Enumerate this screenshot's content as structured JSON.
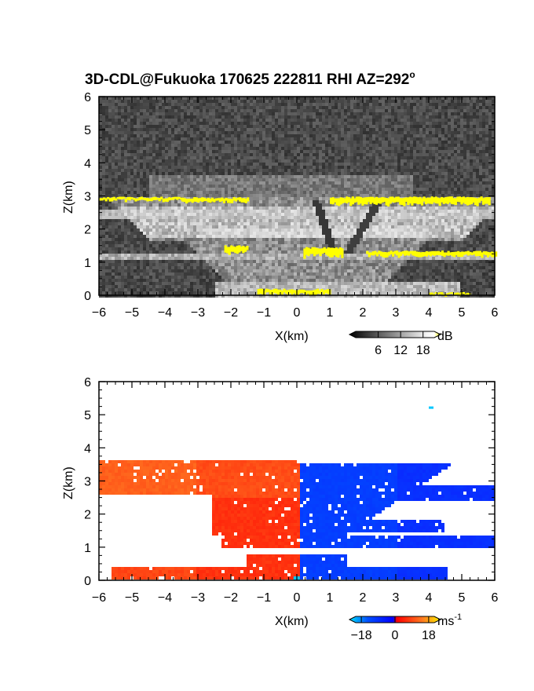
{
  "title": "3D-CDL@Fukuoka 170625 222811 RHI AZ=292",
  "title_degree": "o",
  "chart_data": [
    {
      "type": "heatmap",
      "quantity": "dB",
      "xlabel": "X(km)",
      "ylabel": "Z(km)",
      "xlim": [
        -6,
        6
      ],
      "ylim": [
        0,
        6
      ],
      "xticks": [
        "-6",
        "-5",
        "-4",
        "-3",
        "-2",
        "-1",
        "0",
        "1",
        "2",
        "3",
        "4",
        "5",
        "6"
      ],
      "yticks": [
        "0",
        "1",
        "2",
        "3",
        "4",
        "5",
        "6"
      ],
      "colorbar": {
        "unit": "dB",
        "ticks": [
          "6",
          "12",
          "18"
        ],
        "range": [
          0,
          21
        ]
      },
      "features": [
        {
          "name": "bright layer",
          "x": [
            -6,
            5.8
          ],
          "z": 2.85,
          "value": 18
        },
        {
          "name": "layer",
          "x": [
            -6,
            6
          ],
          "z": 1.2,
          "value": 14
        },
        {
          "name": "layer",
          "x": [
            -0.5,
            5.3
          ],
          "z": 0.05,
          "value": 18
        }
      ],
      "colors": {
        "low": "#1a1a1a",
        "high": "#ffffff",
        "saturated": "#ffff00"
      }
    },
    {
      "type": "heatmap",
      "quantity": "ms-1",
      "xlabel": "X(km)",
      "ylabel": "Z(km)",
      "xlim": [
        -6,
        6
      ],
      "ylim": [
        0,
        6
      ],
      "xticks": [
        "-6",
        "-5",
        "-4",
        "-3",
        "-2",
        "-1",
        "0",
        "1",
        "2",
        "3",
        "4",
        "5",
        "6"
      ],
      "yticks": [
        "0",
        "1",
        "2",
        "3",
        "4",
        "5",
        "6"
      ],
      "colorbar": {
        "unit": "ms",
        "unit_sup": "-1",
        "ticks": [
          "-18",
          "0",
          "18"
        ],
        "range": [
          -21,
          21
        ]
      },
      "regions": [
        {
          "name": "receding",
          "x": [
            -6,
            0.1
          ],
          "z": [
            0,
            3.6
          ],
          "value": 10
        },
        {
          "name": "approaching",
          "x": [
            0.1,
            6
          ],
          "z": [
            0,
            3.5
          ],
          "value": -14
        }
      ],
      "colors": {
        "negative": "#0000ff",
        "zero": "#ff0000",
        "positive": "#ffa040",
        "neg_end": "#00dddd"
      }
    }
  ]
}
